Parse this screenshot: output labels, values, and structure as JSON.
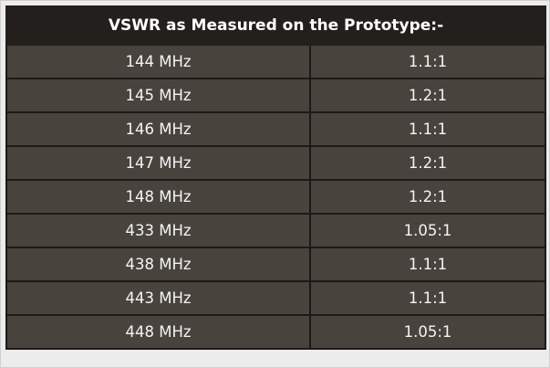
{
  "header": {
    "title": "VSWR as Measured on the Prototype:-"
  },
  "table": {
    "rows": [
      [
        "144 MHz",
        "1.1:1"
      ],
      [
        "145 MHz",
        "1.2:1"
      ],
      [
        "146 MHz",
        "1.1:1"
      ],
      [
        "147 MHz",
        "1.2:1"
      ],
      [
        "148 MHz",
        "1.2:1"
      ],
      [
        "433 MHz",
        "1.05:1"
      ],
      [
        "438 MHz",
        "1.1:1"
      ],
      [
        "443 MHz",
        "1.1:1"
      ],
      [
        "448 MHz",
        "1.05:1"
      ]
    ]
  }
}
